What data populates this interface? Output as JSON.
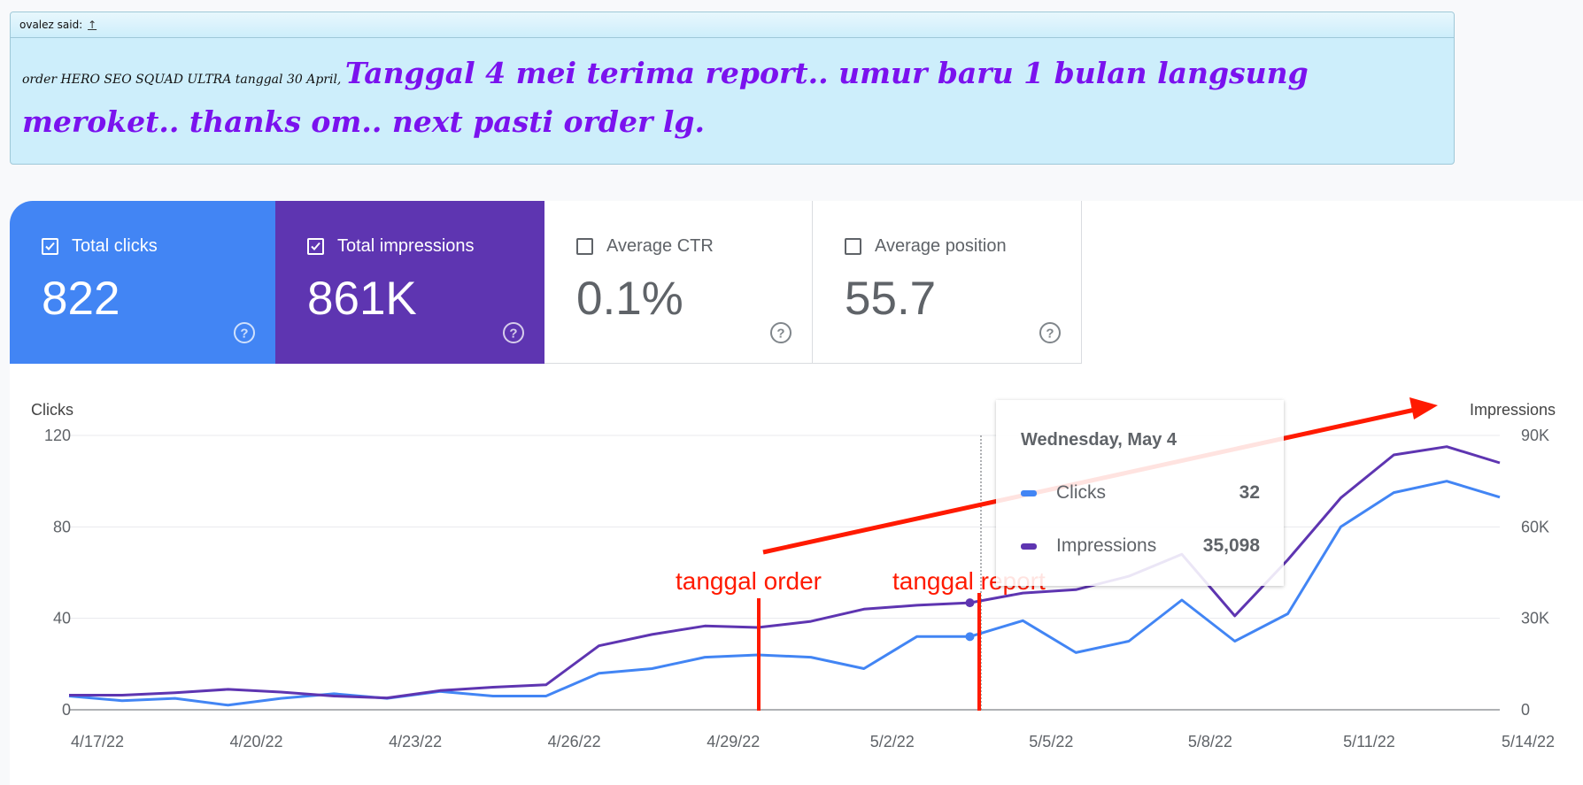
{
  "quote": {
    "author": "ovalez said:",
    "link_symbol": "↑",
    "text_small": "order HERO SEO SQUAD ULTRA tanggal 30 April, ",
    "text_big": "Tanggal 4 mei terima report.. umur baru 1 bulan langsung meroket.. thanks om.. next pasti order lg."
  },
  "metrics": {
    "clicks": {
      "label": "Total clicks",
      "value": "822",
      "checked": true,
      "color": "#4285f4"
    },
    "impressions": {
      "label": "Total impressions",
      "value": "861K",
      "checked": true,
      "color": "#5e35b1"
    },
    "ctr": {
      "label": "Average CTR",
      "value": "0.1%",
      "checked": false
    },
    "position": {
      "label": "Average position",
      "value": "55.7",
      "checked": false
    }
  },
  "tooltip": {
    "date": "Wednesday, May 4",
    "rows": [
      {
        "name": "Clicks",
        "value": "32"
      },
      {
        "name": "Impressions",
        "value": "35,098"
      }
    ]
  },
  "annotations": {
    "order_label": "tanggal order",
    "report_label": "tanggal report",
    "color": "#ff1a00"
  },
  "chart_data": {
    "type": "line",
    "xlabel": "",
    "ylabel": "Clicks",
    "y2label": "Impressions",
    "ylim": [
      0,
      120
    ],
    "y2lim": [
      0,
      90000
    ],
    "yticks": [
      "0",
      "40",
      "80",
      "120"
    ],
    "y2ticks": [
      "0",
      "30K",
      "60K",
      "90K"
    ],
    "x_tick_labels": [
      "4/17/22",
      "4/20/22",
      "4/23/22",
      "4/26/22",
      "4/29/22",
      "5/2/22",
      "5/5/22",
      "5/8/22",
      "5/11/22",
      "5/14/22"
    ],
    "x": [
      "4/17/22",
      "4/18/22",
      "4/19/22",
      "4/20/22",
      "4/21/22",
      "4/22/22",
      "4/23/22",
      "4/24/22",
      "4/25/22",
      "4/26/22",
      "4/27/22",
      "4/28/22",
      "4/29/22",
      "4/30/22",
      "5/1/22",
      "5/2/22",
      "5/3/22",
      "5/4/22",
      "5/5/22",
      "5/6/22",
      "5/7/22",
      "5/8/22",
      "5/9/22",
      "5/10/22",
      "5/11/22",
      "5/12/22",
      "5/13/22",
      "5/14/22"
    ],
    "series": [
      {
        "name": "Clicks",
        "axis": "left",
        "color": "#4285f4",
        "values": [
          6,
          4,
          5,
          2,
          5,
          7,
          5,
          8,
          6,
          6,
          16,
          18,
          23,
          24,
          23,
          18,
          32,
          32,
          39,
          25,
          30,
          48,
          30,
          42,
          80,
          95,
          100,
          93
        ]
      },
      {
        "name": "Impressions",
        "axis": "right",
        "color": "#5e35b1",
        "values": [
          4800,
          4800,
          5600,
          6700,
          5800,
          4500,
          3900,
          6300,
          7400,
          8200,
          21000,
          24700,
          27500,
          27000,
          29000,
          33000,
          34300,
          35098,
          38300,
          39400,
          43800,
          51000,
          30800,
          49200,
          69500,
          83600,
          86300,
          81000
        ]
      }
    ],
    "grid": true,
    "hover_date": "5/4/22"
  }
}
